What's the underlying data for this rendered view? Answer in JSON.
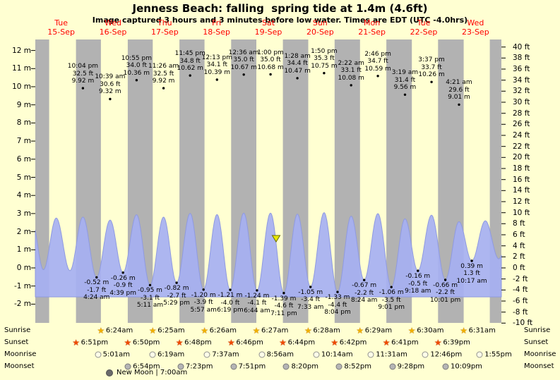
{
  "title": "Jenness Beach: falling  spring tide at 1.4m (4.6ft)",
  "subtitle": "Image captured 3 hours and 3 minutes before low water. Times are EDT (UTC -4.0hrs)",
  "colors": {
    "background": "#ffffd2",
    "night_band": "#b2b2b2",
    "tide_fill": "#a6b0f2",
    "tide_stroke": "#8f9ae0",
    "day_label": "#ff0000",
    "marker_fill": "#e8e800",
    "marker_stroke": "#6b6b00",
    "sunrise_star": "#f0b000",
    "sunset_star": "#f04800",
    "text": "#000000"
  },
  "chart_data": {
    "type": "area",
    "title": "Jenness Beach tide curve, 15-Sep to 23-Sep",
    "x_days": [
      {
        "name": "Tue",
        "date": "15-Sep"
      },
      {
        "name": "Wed",
        "date": "16-Sep"
      },
      {
        "name": "Thu",
        "date": "17-Sep"
      },
      {
        "name": "Fri",
        "date": "18-Sep"
      },
      {
        "name": "Sat",
        "date": "19-Sep"
      },
      {
        "name": "Sun",
        "date": "20-Sep"
      },
      {
        "name": "Mon",
        "date": "21-Sep"
      },
      {
        "name": "Tue",
        "date": "22-Sep"
      },
      {
        "name": "Wed",
        "date": "23-Sep"
      }
    ],
    "y_axis_left": {
      "unit": "m",
      "labels": [
        "12 m",
        "11 m",
        "10 m",
        "9 m",
        "8 m",
        "7 m",
        "6 m",
        "5 m",
        "4 m",
        "3 m",
        "2 m",
        "1 m",
        "0 m",
        "-1 m",
        "-2 m"
      ]
    },
    "y_axis_right": {
      "unit": "ft",
      "labels": [
        "40 ft",
        "38 ft",
        "36 ft",
        "34 ft",
        "32 ft",
        "30 ft",
        "28 ft",
        "26 ft",
        "24 ft",
        "22 ft",
        "20 ft",
        "18 ft",
        "16 ft",
        "14 ft",
        "12 ft",
        "10 ft",
        "8 ft",
        "6 ft",
        "4 ft",
        "2 ft",
        "0 ft",
        "-2 ft",
        "-4 ft",
        "-6 ft",
        "-8 ft",
        "-10 ft"
      ]
    },
    "high_tides": [
      {
        "day": 0,
        "time": "10:04 pm",
        "ft": "32.5 ft",
        "m": "9.92 m"
      },
      {
        "day": 1,
        "time": "10:39 am",
        "ft": "30.6 ft",
        "m": "9.32 m"
      },
      {
        "day": 1,
        "time": "10:55 pm",
        "ft": "34.0 ft",
        "m": "10.36 m"
      },
      {
        "day": 2,
        "time": "11:26 am",
        "ft": "32.5 ft",
        "m": "9.92 m"
      },
      {
        "day": 2,
        "time": "11:45 pm",
        "ft": "34.8 ft",
        "m": "10.62 m"
      },
      {
        "day": 3,
        "time": "12:13 pm",
        "ft": "34.1 ft",
        "m": "10.39 m"
      },
      {
        "day": 4,
        "time": "12:36 am",
        "ft": "35.0 ft",
        "m": "10.67 m"
      },
      {
        "day": 4,
        "time": "1:00 pm",
        "ft": "35.0 ft",
        "m": "10.68 m"
      },
      {
        "day": 5,
        "time": "1:28 am",
        "ft": "34.4 ft",
        "m": "10.47 m"
      },
      {
        "day": 5,
        "time": "1:50 pm",
        "ft": "35.3 ft",
        "m": "10.75 m"
      },
      {
        "day": 6,
        "time": "2:22 am",
        "ft": "33.1 ft",
        "m": "10.08 m"
      },
      {
        "day": 6,
        "time": "2:46 pm",
        "ft": "34.7 ft",
        "m": "10.59 m"
      },
      {
        "day": 7,
        "time": "3:19 am",
        "ft": "31.4 ft",
        "m": "9.56 m"
      },
      {
        "day": 7,
        "time": "3:37 pm",
        "ft": "33.7 ft",
        "m": "10.26 m"
      },
      {
        "day": 8,
        "time": "4:21 am",
        "ft": "29.6 ft",
        "m": "9.01 m"
      }
    ],
    "low_tides": [
      {
        "day": 1,
        "time": "4:24 am",
        "m": "-0.52 m",
        "ft": "-1.7 ft"
      },
      {
        "day": 1,
        "time": "4:39 pm",
        "m": "-0.26 m",
        "ft": "-0.9 ft"
      },
      {
        "day": 2,
        "time": "5:11 am",
        "m": "-0.95 m",
        "ft": "-3.1 ft"
      },
      {
        "day": 2,
        "time": "5:29 pm",
        "m": "-0.82 m",
        "ft": "-2.7 ft"
      },
      {
        "day": 3,
        "time": "5:57 am",
        "m": "-1.20 m",
        "ft": "-3.9 ft"
      },
      {
        "day": 3,
        "time": "6:19 pm",
        "m": "-1.21 m",
        "ft": "-4.0 ft"
      },
      {
        "day": 4,
        "time": "6:44 am",
        "m": "-1.24 m",
        "ft": "-4.1 ft"
      },
      {
        "day": 4,
        "time": "7:11 pm",
        "m": "-1.39 m",
        "ft": "-4.6 ft"
      },
      {
        "day": 5,
        "time": "7:33 am",
        "m": "-1.05 m",
        "ft": "-3.4 ft"
      },
      {
        "day": 5,
        "time": "8:04 pm",
        "m": "-1.33 m",
        "ft": "-4.4 ft"
      },
      {
        "day": 6,
        "time": "8:24 am",
        "m": "-0.67 m",
        "ft": "-2.2 ft"
      },
      {
        "day": 6,
        "time": "9:01 pm",
        "m": "-1.06 m",
        "ft": "-3.5 ft"
      },
      {
        "day": 7,
        "time": "9:18 am",
        "m": "-0.16 m",
        "ft": "-0.5 ft"
      },
      {
        "day": 7,
        "time": "10:01 pm",
        "m": "-0.66 m",
        "ft": "-2.2 ft"
      },
      {
        "day": 8,
        "time": "10:17 am",
        "m": "0.39 m",
        "ft": "1.3 ft"
      }
    ],
    "current_marker": {
      "height_m": 1.4,
      "height_ft": 4.6,
      "state": "falling"
    },
    "curve_padding_start": [
      [
        -0.07,
        2.7
      ],
      [
        0.157,
        -0.1
      ],
      [
        0.404,
        2.75
      ],
      [
        0.669,
        -0.15
      ]
    ],
    "curve_padding_end": [
      [
        8.69,
        2.6
      ],
      [
        8.95,
        0.5
      ],
      [
        9.2,
        2.7
      ]
    ]
  },
  "astro": {
    "sunrise_label": "Sunrise",
    "sunset_label": "Sunset",
    "moonrise_label": "Moonrise",
    "moonset_label": "Moonset",
    "new_moon_label": "New Moon | 7:00am",
    "sunrise": [
      {
        "day": 1,
        "time": "6:24am"
      },
      {
        "day": 2,
        "time": "6:25am"
      },
      {
        "day": 3,
        "time": "6:26am"
      },
      {
        "day": 4,
        "time": "6:27am"
      },
      {
        "day": 5,
        "time": "6:28am"
      },
      {
        "day": 6,
        "time": "6:29am"
      },
      {
        "day": 7,
        "time": "6:30am"
      },
      {
        "day": 8,
        "time": "6:31am"
      }
    ],
    "sunset": [
      {
        "day": 0,
        "time": "6:51pm"
      },
      {
        "day": 1,
        "time": "6:50pm"
      },
      {
        "day": 2,
        "time": "6:48pm"
      },
      {
        "day": 3,
        "time": "6:46pm"
      },
      {
        "day": 4,
        "time": "6:44pm"
      },
      {
        "day": 5,
        "time": "6:42pm"
      },
      {
        "day": 6,
        "time": "6:41pm"
      },
      {
        "day": 7,
        "time": "6:39pm"
      }
    ],
    "moonrise": [
      {
        "day": 1,
        "time": "5:01am"
      },
      {
        "day": 2,
        "time": "6:19am"
      },
      {
        "day": 3,
        "time": "7:37am"
      },
      {
        "day": 4,
        "time": "8:56am"
      },
      {
        "day": 5,
        "time": "10:14am"
      },
      {
        "day": 6,
        "time": "11:31am"
      },
      {
        "day": 7,
        "time": "12:46pm"
      },
      {
        "day": 8,
        "time": "1:55pm"
      }
    ],
    "moonset": [
      {
        "day": 1,
        "time": "6:54pm"
      },
      {
        "day": 2,
        "time": "7:23pm"
      },
      {
        "day": 3,
        "time": "7:51pm"
      },
      {
        "day": 4,
        "time": "8:20pm"
      },
      {
        "day": 5,
        "time": "8:52pm"
      },
      {
        "day": 6,
        "time": "9:28pm"
      },
      {
        "day": 7,
        "time": "10:09pm"
      }
    ]
  }
}
